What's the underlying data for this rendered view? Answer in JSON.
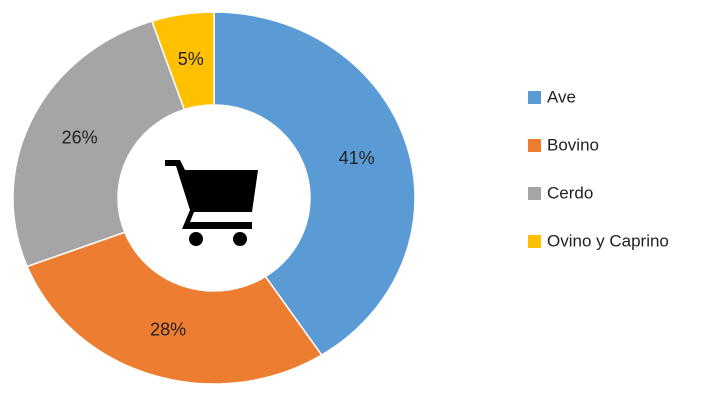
{
  "chart_data": {
    "type": "donut",
    "categories": [
      "Ave",
      "Bovino",
      "Cerdo",
      "Ovino y Caprino"
    ],
    "values": [
      41,
      28,
      26,
      5
    ],
    "value_labels": [
      "41%",
      "28%",
      "26%",
      "5%"
    ],
    "colors": [
      "#5b9bd5",
      "#ed7d31",
      "#a5a5a5",
      "#ffc000"
    ],
    "legend": "right"
  }
}
